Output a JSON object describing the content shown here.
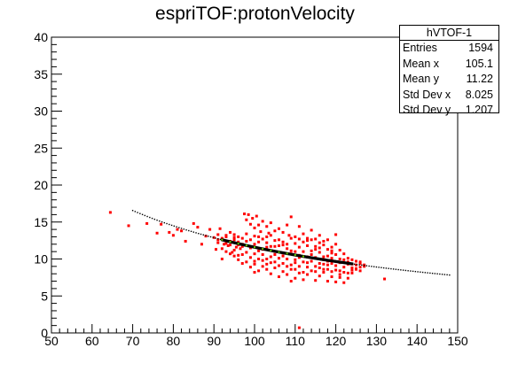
{
  "chart_data": {
    "type": "scatter",
    "title": "espriTOF:protonVelocity",
    "xlabel": "",
    "ylabel": "",
    "xlim": [
      50,
      150
    ],
    "ylim": [
      0,
      40
    ],
    "x_ticks": [
      "50",
      "60",
      "70",
      "80",
      "90",
      "100",
      "110",
      "120",
      "130",
      "140",
      "150"
    ],
    "y_ticks": [
      "0",
      "5",
      "10",
      "15",
      "20",
      "25",
      "30",
      "35",
      "40"
    ],
    "grid": false,
    "stats_box": {
      "name": "hVTOF-1",
      "rows": [
        {
          "label": "Entries",
          "value": "1594"
        },
        {
          "label": "Mean x",
          "value": "105.1"
        },
        {
          "label": "Mean y",
          "value": "11.22"
        },
        {
          "label": "Std Dev x",
          "value": "8.025"
        },
        {
          "label": "Std Dev y",
          "value": "1.207"
        }
      ],
      "placement": "top-right"
    },
    "series": [
      {
        "color": "#ff0000",
        "marker": "square",
        "points": [
          [
            64.5,
            16.3
          ],
          [
            69,
            14.5
          ],
          [
            73.5,
            14.8
          ],
          [
            76,
            13.5
          ],
          [
            77,
            14.7
          ],
          [
            79,
            13.6
          ],
          [
            80,
            13.2
          ],
          [
            81,
            14.0
          ],
          [
            82,
            13.8
          ],
          [
            83,
            12.4
          ],
          [
            85,
            14.8
          ],
          [
            86,
            14.3
          ],
          [
            87,
            12.0
          ],
          [
            88,
            13.1
          ],
          [
            89,
            14.0
          ],
          [
            90,
            12.9
          ],
          [
            90.5,
            11.3
          ],
          [
            91,
            12.6
          ],
          [
            91.5,
            14.1
          ],
          [
            92,
            12.8
          ],
          [
            92.5,
            12.0
          ],
          [
            93,
            13.2
          ],
          [
            93.5,
            11.8
          ],
          [
            94,
            12.4
          ],
          [
            94.5,
            10.9
          ],
          [
            95,
            12.6
          ],
          [
            95.5,
            11.6
          ],
          [
            96,
            13.0
          ],
          [
            96.5,
            11.4
          ],
          [
            97,
            12.0
          ],
          [
            97.5,
            16.1
          ],
          [
            98,
            15.3
          ],
          [
            98.5,
            16.0
          ],
          [
            99,
            14.7
          ],
          [
            99.5,
            15.5
          ],
          [
            100,
            14.2
          ],
          [
            100.5,
            15.8
          ],
          [
            101,
            14.6
          ],
          [
            101.5,
            13.7
          ],
          [
            102,
            15.1
          ],
          [
            103,
            14.4
          ],
          [
            103.5,
            13.5
          ],
          [
            104,
            14.9
          ],
          [
            105,
            13.8
          ],
          [
            106,
            14.1
          ],
          [
            107,
            13.6
          ],
          [
            108,
            14.6
          ],
          [
            108.5,
            13.2
          ],
          [
            109,
            15.7
          ],
          [
            110,
            13.0
          ],
          [
            111,
            14.4
          ],
          [
            112,
            13.4
          ],
          [
            113,
            12.8
          ],
          [
            114,
            13.9
          ],
          [
            115,
            12.7
          ],
          [
            116,
            13.2
          ],
          [
            117,
            11.9
          ],
          [
            118,
            12.6
          ],
          [
            119,
            11.1
          ],
          [
            120,
            13.3
          ],
          [
            98,
            9.6
          ],
          [
            99,
            8.9
          ],
          [
            100,
            9.3
          ],
          [
            101,
            8.4
          ],
          [
            102,
            9.0
          ],
          [
            103,
            8.6
          ],
          [
            104,
            8.0
          ],
          [
            105,
            8.8
          ],
          [
            106,
            7.6
          ],
          [
            107,
            8.3
          ],
          [
            108,
            7.9
          ],
          [
            109,
            8.6
          ],
          [
            110,
            7.4
          ],
          [
            111,
            8.1
          ],
          [
            112,
            7.2
          ],
          [
            113,
            7.9
          ],
          [
            114,
            8.4
          ],
          [
            115,
            7.1
          ],
          [
            116,
            7.7
          ],
          [
            117,
            8.2
          ],
          [
            118,
            7.0
          ],
          [
            119,
            7.6
          ],
          [
            120,
            6.9
          ],
          [
            121,
            7.5
          ],
          [
            122,
            6.8
          ],
          [
            123,
            7.4
          ],
          [
            124,
            8.1
          ],
          [
            125,
            8.6
          ],
          [
            126,
            8.9
          ],
          [
            127,
            9.0
          ],
          [
            92,
            11.4
          ],
          [
            93,
            12.1
          ],
          [
            94,
            11.9
          ],
          [
            95,
            11.2
          ],
          [
            96,
            12.3
          ],
          [
            97,
            11.7
          ],
          [
            98,
            10.9
          ],
          [
            99,
            11.5
          ],
          [
            100,
            12.0
          ],
          [
            101,
            11.1
          ],
          [
            102,
            10.6
          ],
          [
            103,
            11.6
          ],
          [
            104,
            10.3
          ],
          [
            105,
            11.0
          ],
          [
            106,
            10.1
          ],
          [
            107,
            10.8
          ],
          [
            108,
            10.0
          ],
          [
            109,
            10.7
          ],
          [
            110,
            9.9
          ],
          [
            111,
            10.5
          ],
          [
            112,
            9.6
          ],
          [
            113,
            10.3
          ],
          [
            114,
            9.7
          ],
          [
            115,
            10.2
          ],
          [
            116,
            9.4
          ],
          [
            117,
            9.9
          ],
          [
            118,
            9.2
          ],
          [
            119,
            9.7
          ],
          [
            120,
            9.1
          ],
          [
            121,
            9.5
          ],
          [
            122,
            8.9
          ],
          [
            123,
            9.3
          ],
          [
            124,
            8.8
          ],
          [
            125,
            9.2
          ],
          [
            126,
            9.4
          ],
          [
            91,
            13.3
          ],
          [
            93,
            11.0
          ],
          [
            95,
            12.9
          ],
          [
            97,
            10.6
          ],
          [
            99,
            12.6
          ],
          [
            101,
            10.0
          ],
          [
            103,
            12.2
          ],
          [
            105,
            9.6
          ],
          [
            107,
            11.9
          ],
          [
            109,
            9.2
          ],
          [
            111,
            11.6
          ],
          [
            113,
            8.9
          ],
          [
            115,
            11.3
          ],
          [
            117,
            8.6
          ],
          [
            119,
            10.8
          ],
          [
            121,
            8.4
          ],
          [
            123,
            10.1
          ],
          [
            96,
            9.9
          ],
          [
            104,
            13.2
          ],
          [
            112,
            12.3
          ],
          [
            118,
            10.4
          ],
          [
            124,
            9.9
          ],
          [
            100,
            10.7
          ],
          [
            106,
            12.6
          ],
          [
            110,
            8.6
          ],
          [
            114,
            11.1
          ],
          [
            120,
            10.6
          ],
          [
            122,
            9.9
          ],
          [
            94,
            13.6
          ],
          [
            102,
            12.7
          ],
          [
            108,
            11.4
          ],
          [
            116,
            10.9
          ],
          [
            119,
            8.3
          ],
          [
            105,
            12.5
          ],
          [
            111,
            9.0
          ],
          [
            100,
            8.2
          ],
          [
            109,
            7.0
          ],
          [
            121,
            7.9
          ],
          [
            116,
            12.2
          ],
          [
            98,
            13.4
          ],
          [
            95,
            10.4
          ],
          [
            101,
            13.0
          ],
          [
            107,
            9.4
          ],
          [
            113,
            11.8
          ],
          [
            125,
            9.7
          ],
          [
            92,
            10.0
          ],
          [
            104,
            9.5
          ],
          [
            110,
            12.1
          ],
          [
            117,
            12.4
          ],
          [
            123,
            8.1
          ],
          [
            97,
            9.4
          ],
          [
            103,
            10.0
          ],
          [
            115,
            9.0
          ],
          [
            119,
            11.6
          ],
          [
            106,
            11.8
          ],
          [
            111,
            12.7
          ],
          [
            112,
            8.2
          ],
          [
            108,
            9.0
          ],
          [
            114,
            12.6
          ],
          [
            120,
            12.0
          ],
          [
            118,
            9.7
          ],
          [
            122,
            10.7
          ],
          [
            102,
            11.3
          ],
          [
            96,
            10.5
          ],
          [
            113,
            9.5
          ],
          [
            126,
            9.6
          ],
          [
            127,
            9.2
          ],
          [
            124,
            9.3
          ],
          [
            91,
            12.2
          ],
          [
            93,
            13.0
          ],
          [
            100,
            9.7
          ],
          [
            107,
            12.3
          ],
          [
            109,
            11.1
          ],
          [
            115,
            8.3
          ],
          [
            117,
            10.3
          ],
          [
            121,
            11.2
          ],
          [
            125,
            8.7
          ],
          [
            103,
            13.0
          ],
          [
            105,
            10.6
          ],
          [
            110,
            11.0
          ],
          [
            116,
            8.8
          ],
          [
            118,
            11.3
          ],
          [
            99,
            10.2
          ],
          [
            94,
            10.7
          ],
          [
            98,
            12.4
          ],
          [
            106,
            9.1
          ],
          [
            112,
            11.0
          ],
          [
            114,
            10.6
          ],
          [
            119,
            9.4
          ],
          [
            123,
            9.6
          ],
          [
            101,
            12.3
          ],
          [
            104,
            11.7
          ],
          [
            108,
            12.0
          ],
          [
            120,
            8.5
          ],
          [
            124,
            8.5
          ],
          [
            126,
            8.4
          ],
          [
            95,
            13.3
          ],
          [
            97,
            12.8
          ],
          [
            102,
            9.8
          ],
          [
            111,
            10.2
          ],
          [
            113,
            12.5
          ],
          [
            115,
            11.7
          ],
          [
            117,
            9.3
          ],
          [
            121,
            10.0
          ],
          [
            122,
            8.2
          ],
          [
            100,
            13.1
          ],
          [
            96,
            11.9
          ],
          [
            110,
            9.5
          ],
          [
            118,
            8.6
          ],
          [
            103,
            9.3
          ],
          [
            107,
            10.4
          ],
          [
            116,
            11.5
          ],
          [
            119,
            10.1
          ],
          [
            109,
            12.8
          ],
          [
            105,
            11.7
          ],
          [
            132,
            7.3
          ],
          [
            111,
            0.7
          ]
        ]
      },
      {
        "color": "#000000",
        "marker": "dot",
        "x_from": 70,
        "x_to": 148,
        "step": 0.6,
        "curve": "y = 1159.15 / x"
      },
      {
        "color": "#66cc00",
        "marker": "dot",
        "x_from": 92,
        "x_to": 112,
        "step": 0.5,
        "curve": "y = 1159.15 / x"
      }
    ]
  }
}
